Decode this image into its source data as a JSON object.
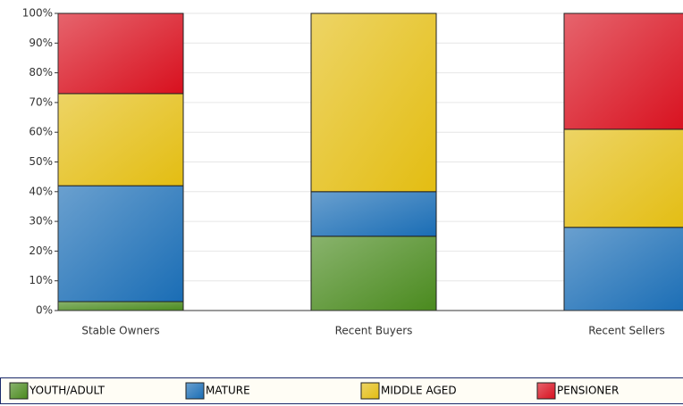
{
  "chart_data": {
    "type": "stacked-bar",
    "categories": [
      "Stable Owners",
      "Recent Buyers",
      "Recent Sellers"
    ],
    "series": [
      {
        "name": "YOUTH/ADULT",
        "color": "#4a8a1e",
        "values": [
          3,
          25,
          0
        ]
      },
      {
        "name": "MATURE",
        "color": "#1a6db5",
        "values": [
          39,
          15,
          28
        ]
      },
      {
        "name": "MIDDLE AGED",
        "color": "#e3bd12",
        "values": [
          31,
          60,
          33
        ]
      },
      {
        "name": "PENSIONER",
        "color": "#d8101e",
        "values": [
          27,
          0,
          39
        ]
      }
    ],
    "ylim": [
      0,
      100
    ],
    "yticks": [
      {
        "value": 0,
        "label": "0%"
      },
      {
        "value": 10,
        "label": "10%"
      },
      {
        "value": 20,
        "label": "20%"
      },
      {
        "value": 30,
        "label": "30%"
      },
      {
        "value": 40,
        "label": "40%"
      },
      {
        "value": 50,
        "label": "50%"
      },
      {
        "value": 60,
        "label": "60%"
      },
      {
        "value": 70,
        "label": "70%"
      },
      {
        "value": 80,
        "label": "80%"
      },
      {
        "value": 90,
        "label": "90%"
      },
      {
        "value": 100,
        "label": "100%"
      }
    ],
    "grid": true,
    "legend": "bottom"
  }
}
